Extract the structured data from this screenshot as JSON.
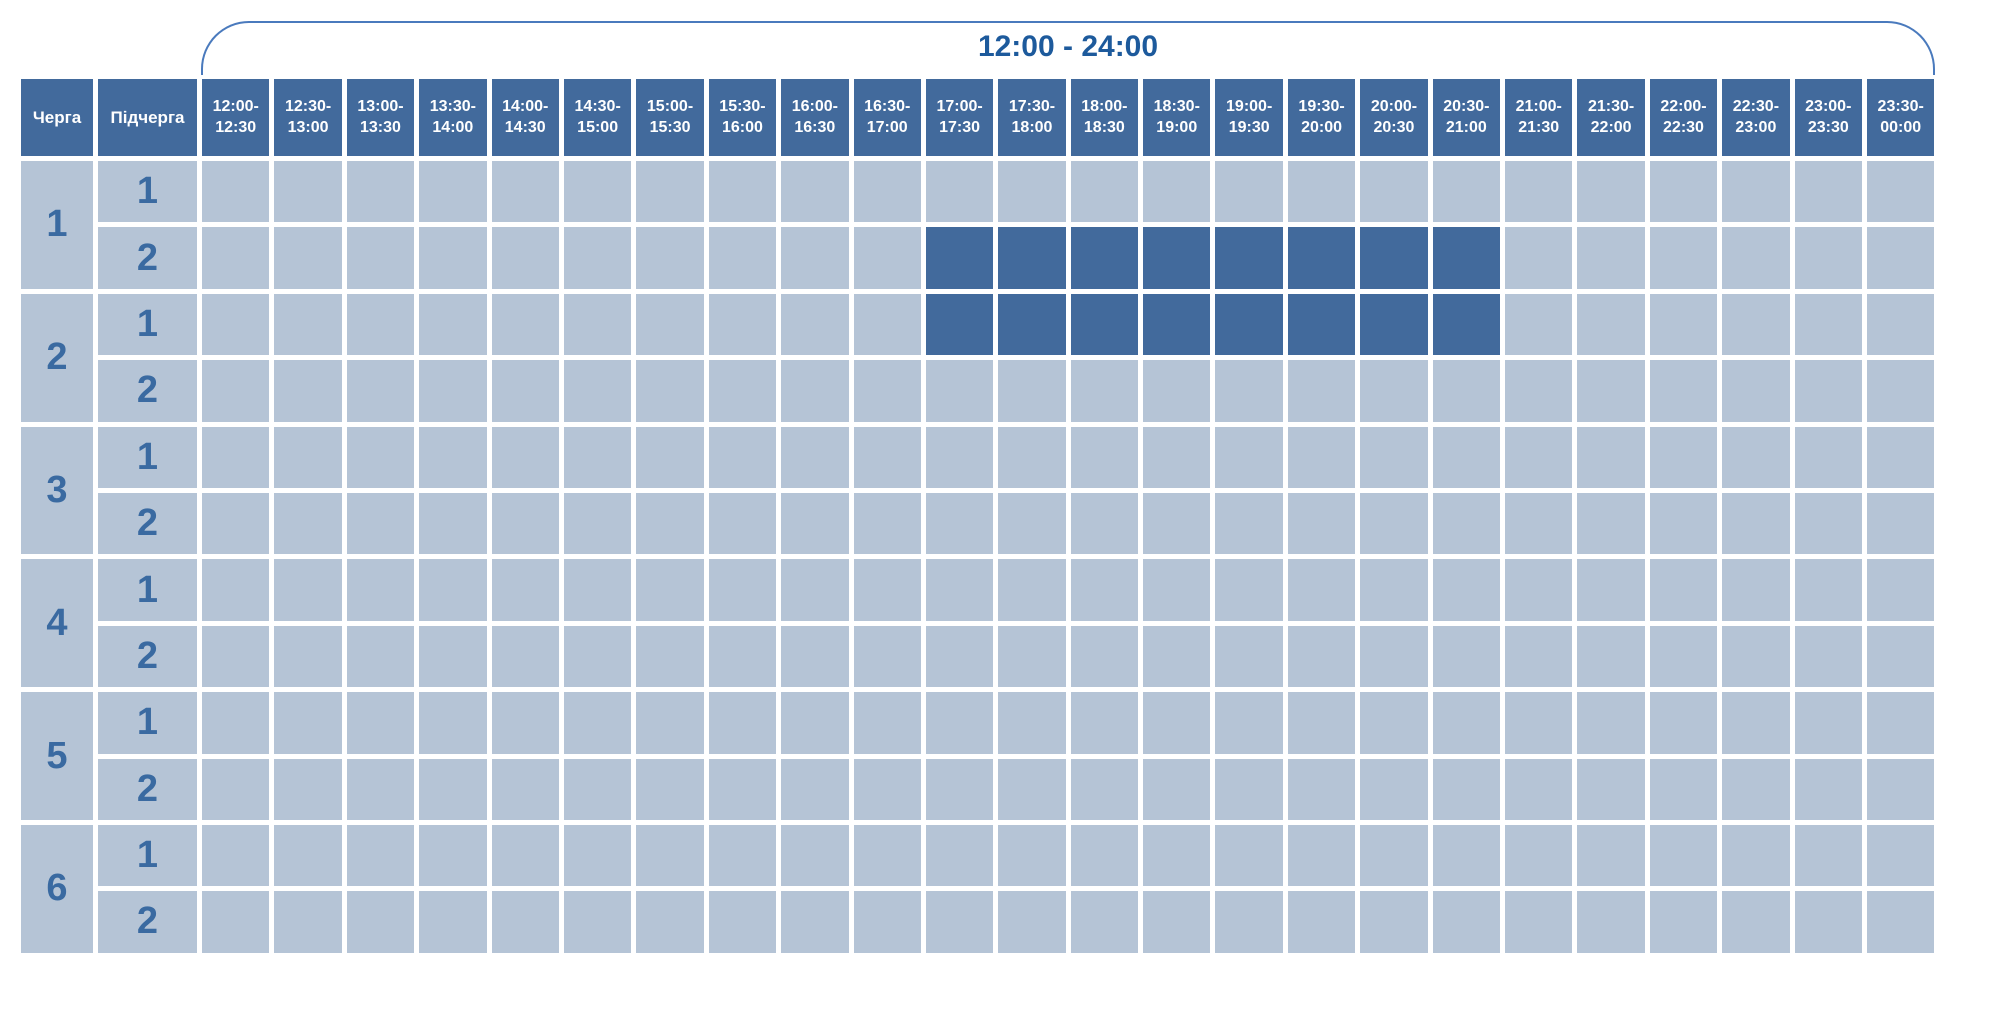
{
  "title": "12:00 - 24:00",
  "colors": {
    "header_fill": "#426A9C",
    "empty_cell_fill": "#B5C4D6",
    "outage_cell_fill": "#426A9C",
    "digit_text": "#3A6AA1",
    "title_text": "#1D5A9C",
    "bracket_line": "#4A7ABD",
    "header_text": "#FFFFFF"
  },
  "chart_data": {
    "type": "table",
    "title": "12:00 - 24:00",
    "corner_headers": [
      "Черга",
      "Підчерга"
    ],
    "time_slot_columns": [
      [
        "12:00",
        "12:30"
      ],
      [
        "12:30",
        "13:00"
      ],
      [
        "13:00",
        "13:30"
      ],
      [
        "13:30",
        "14:00"
      ],
      [
        "14:00",
        "14:30"
      ],
      [
        "14:30",
        "15:00"
      ],
      [
        "15:00",
        "15:30"
      ],
      [
        "15:30",
        "16:00"
      ],
      [
        "16:00",
        "16:30"
      ],
      [
        "16:30",
        "17:00"
      ],
      [
        "17:00",
        "17:30"
      ],
      [
        "17:30",
        "18:00"
      ],
      [
        "18:00",
        "18:30"
      ],
      [
        "18:30",
        "19:00"
      ],
      [
        "19:00",
        "19:30"
      ],
      [
        "19:30",
        "20:00"
      ],
      [
        "20:00",
        "20:30"
      ],
      [
        "20:30",
        "21:00"
      ],
      [
        "21:00",
        "21:30"
      ],
      [
        "21:30",
        "22:00"
      ],
      [
        "22:00",
        "22:30"
      ],
      [
        "22:30",
        "23:00"
      ],
      [
        "23:00",
        "23:30"
      ],
      [
        "23:30",
        "00:00"
      ]
    ],
    "queues": [
      {
        "queue": "1",
        "subqueues": [
          {
            "label": "1",
            "outage_slot_indices": []
          },
          {
            "label": "2",
            "outage_slot_indices": [
              10,
              11,
              12,
              13,
              14,
              15,
              16,
              17
            ]
          }
        ]
      },
      {
        "queue": "2",
        "subqueues": [
          {
            "label": "1",
            "outage_slot_indices": [
              10,
              11,
              12,
              13,
              14,
              15,
              16,
              17
            ]
          },
          {
            "label": "2",
            "outage_slot_indices": []
          }
        ]
      },
      {
        "queue": "3",
        "subqueues": [
          {
            "label": "1",
            "outage_slot_indices": []
          },
          {
            "label": "2",
            "outage_slot_indices": []
          }
        ]
      },
      {
        "queue": "4",
        "subqueues": [
          {
            "label": "1",
            "outage_slot_indices": []
          },
          {
            "label": "2",
            "outage_slot_indices": []
          }
        ]
      },
      {
        "queue": "5",
        "subqueues": [
          {
            "label": "1",
            "outage_slot_indices": []
          },
          {
            "label": "2",
            "outage_slot_indices": []
          }
        ]
      },
      {
        "queue": "6",
        "subqueues": [
          {
            "label": "1",
            "outage_slot_indices": []
          },
          {
            "label": "2",
            "outage_slot_indices": []
          }
        ]
      }
    ],
    "outage_periods": [
      {
        "queue": "1",
        "subqueue": "2",
        "from": "17:00",
        "to": "21:00"
      },
      {
        "queue": "2",
        "subqueue": "1",
        "from": "17:00",
        "to": "21:00"
      }
    ]
  }
}
